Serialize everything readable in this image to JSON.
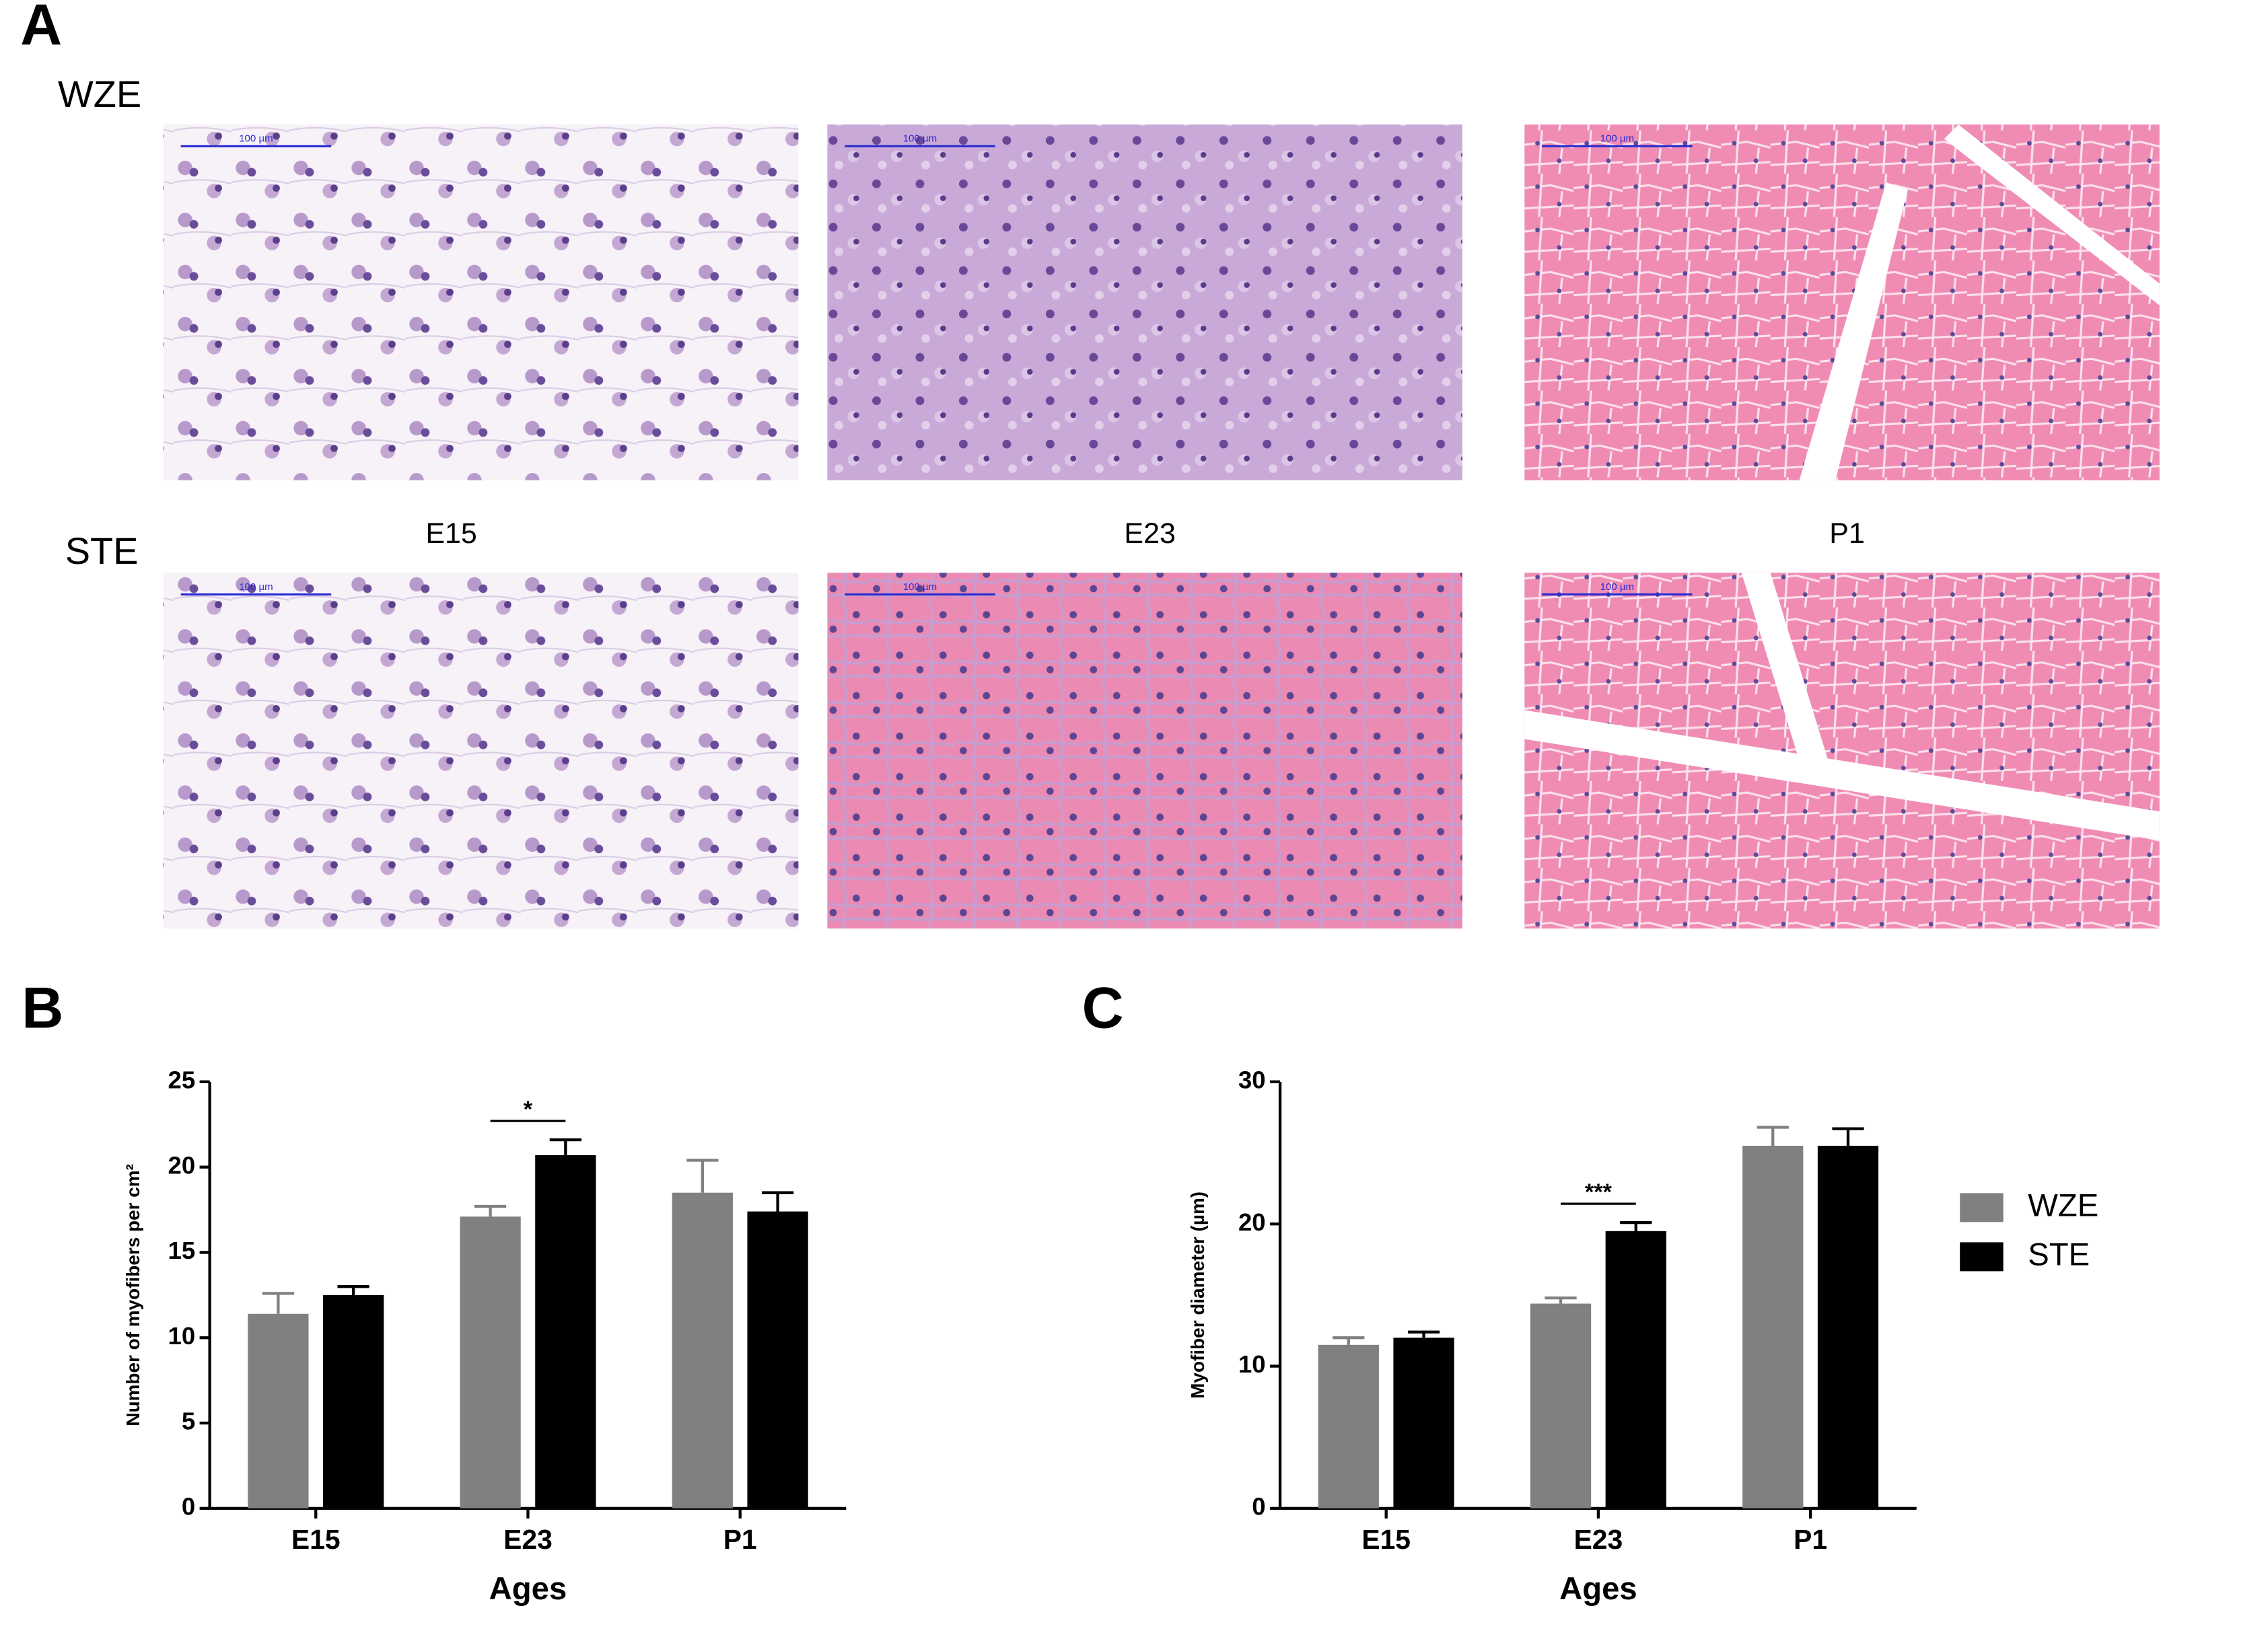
{
  "panel_a": {
    "label": "A",
    "rows": [
      "WZE",
      "STE"
    ],
    "columns": [
      "E15",
      "E23",
      "P1"
    ],
    "scale_bar": "100 µm"
  },
  "chart_data": [
    {
      "type": "bar",
      "panel_label": "B",
      "x_label": "Ages",
      "y_label": "Number of myofibers per cm²",
      "categories": [
        "E15",
        "E23",
        "P1"
      ],
      "series": [
        {
          "name": "WZE",
          "color": "#808080",
          "values": [
            11.4,
            17.1,
            18.5
          ],
          "errors": [
            1.2,
            0.6,
            1.9
          ]
        },
        {
          "name": "STE",
          "color": "#000000",
          "values": [
            12.5,
            20.7,
            17.4
          ],
          "errors": [
            0.5,
            0.9,
            1.1
          ]
        }
      ],
      "ylim": [
        0,
        25
      ],
      "yticks": [
        0,
        5,
        10,
        15,
        20,
        25
      ],
      "annotations": [
        {
          "text": "*",
          "category": "E23"
        }
      ],
      "legend": false
    },
    {
      "type": "bar",
      "panel_label": "C",
      "x_label": "Ages",
      "y_label": "Myofiber diameter (µm)",
      "categories": [
        "E15",
        "E23",
        "P1"
      ],
      "series": [
        {
          "name": "WZE",
          "color": "#808080",
          "values": [
            11.5,
            14.4,
            25.5
          ],
          "errors": [
            0.5,
            0.4,
            1.3
          ]
        },
        {
          "name": "STE",
          "color": "#000000",
          "values": [
            12.0,
            19.5,
            25.5
          ],
          "errors": [
            0.4,
            0.6,
            1.2
          ]
        }
      ],
      "ylim": [
        0,
        30
      ],
      "yticks": [
        0,
        10,
        20,
        30
      ],
      "annotations": [
        {
          "text": "***",
          "category": "E23"
        }
      ],
      "legend": true
    }
  ]
}
